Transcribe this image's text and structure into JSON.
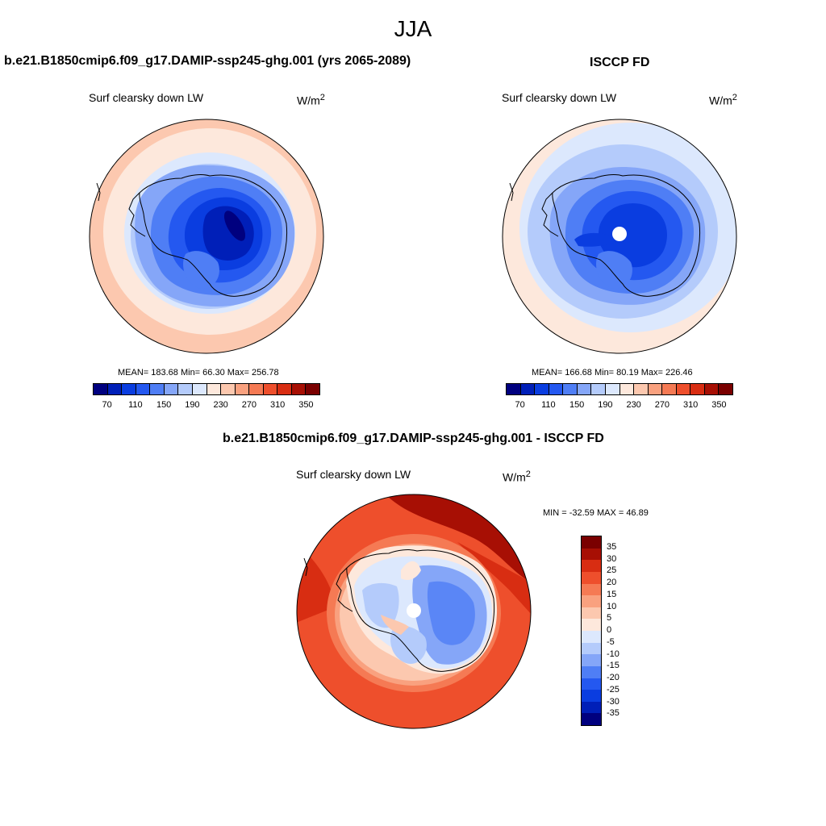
{
  "page": {
    "title": "JJA"
  },
  "colors": {
    "abs": [
      "#00007f",
      "#001fb8",
      "#0a3de0",
      "#2458f0",
      "#4f7ef5",
      "#85a6f8",
      "#b4cbfb",
      "#dce8fd",
      "#fde8dc",
      "#fcc8af",
      "#f9a17f",
      "#f57a54",
      "#ee4f2c",
      "#d82d12",
      "#a70f04",
      "#7a0000"
    ],
    "diff": [
      "#00007f",
      "#001fb8",
      "#0a3de0",
      "#2458f0",
      "#4f7ef5",
      "#85a6f8",
      "#b4cbfb",
      "#dce8fd",
      "#fde8dc",
      "#fcc8af",
      "#f9a17f",
      "#f57a54",
      "#ee4f2c",
      "#d82d12",
      "#a70f04",
      "#7a0000"
    ]
  },
  "panels": [
    {
      "id": "model",
      "title": "b.e21.B1850cmip6.f09_g17.DAMIP-ssp245-ghg.001 (yrs 2065-2089)",
      "variable": "Surf clearsky down LW",
      "units_base": "W/m",
      "units_exp": "2",
      "stats": "MEAN= 183.68  Min=  66.30  Max= 256.78",
      "colorbar_ticks": [
        "70",
        "110",
        "150",
        "190",
        "230",
        "270",
        "310",
        "350"
      ]
    },
    {
      "id": "obs",
      "title": "ISCCP FD",
      "variable": "Surf clearsky down LW",
      "units_base": "W/m",
      "units_exp": "2",
      "stats": "MEAN= 166.68  Min=  80.19  Max= 226.46",
      "colorbar_ticks": [
        "70",
        "110",
        "150",
        "190",
        "230",
        "270",
        "310",
        "350"
      ]
    },
    {
      "id": "diff",
      "title": "b.e21.B1850cmip6.f09_g17.DAMIP-ssp245-ghg.001 - ISCCP FD",
      "variable": "Surf clearsky down LW",
      "units_base": "W/m",
      "units_exp": "2",
      "stats": "MIN = -32.59 MAX =  46.89",
      "colorbar_ticks": [
        "35",
        "30",
        "25",
        "20",
        "15",
        "10",
        "5",
        "0",
        "-5",
        "-10",
        "-15",
        "-20",
        "-25",
        "-30",
        "-35"
      ]
    }
  ],
  "chart_data": [
    {
      "type": "heatmap",
      "title": "b.e21.B1850cmip6.f09_g17.DAMIP-ssp245-ghg.001 (yrs 2065-2089)",
      "projection": "south-polar-stereographic",
      "variable": "Surf clearsky down LW",
      "units": "W/m2",
      "mean": 183.68,
      "min": 66.3,
      "max": 256.78,
      "contour_levels": [
        70,
        80,
        90,
        100,
        110,
        120,
        130,
        140,
        150,
        160,
        170,
        180,
        190,
        200,
        210,
        220,
        230,
        240,
        250,
        260,
        270,
        280,
        290,
        300,
        310,
        320,
        330,
        340,
        350
      ],
      "colorbar_labels": [
        70,
        110,
        150,
        190,
        230,
        270,
        310,
        350
      ],
      "legend": "bottom"
    },
    {
      "type": "heatmap",
      "title": "ISCCP FD",
      "projection": "south-polar-stereographic",
      "variable": "Surf clearsky down LW",
      "units": "W/m2",
      "mean": 166.68,
      "min": 80.19,
      "max": 226.46,
      "contour_levels": [
        70,
        80,
        90,
        100,
        110,
        120,
        130,
        140,
        150,
        160,
        170,
        180,
        190,
        200,
        210,
        220,
        230,
        240,
        250,
        260,
        270,
        280,
        290,
        300,
        310,
        320,
        330,
        340,
        350
      ],
      "colorbar_labels": [
        70,
        110,
        150,
        190,
        230,
        270,
        310,
        350
      ],
      "legend": "bottom"
    },
    {
      "type": "heatmap",
      "title": "b.e21.B1850cmip6.f09_g17.DAMIP-ssp245-ghg.001 - ISCCP FD",
      "projection": "south-polar-stereographic",
      "variable": "Surf clearsky down LW",
      "units": "W/m2",
      "min": -32.59,
      "max": 46.89,
      "contour_levels": [
        -35,
        -30,
        -25,
        -20,
        -15,
        -10,
        -5,
        0,
        5,
        10,
        15,
        20,
        25,
        30,
        35
      ],
      "colorbar_labels": [
        35,
        30,
        25,
        20,
        15,
        10,
        5,
        0,
        -5,
        -10,
        -15,
        -20,
        -25,
        -30,
        -35
      ],
      "legend": "right"
    }
  ]
}
